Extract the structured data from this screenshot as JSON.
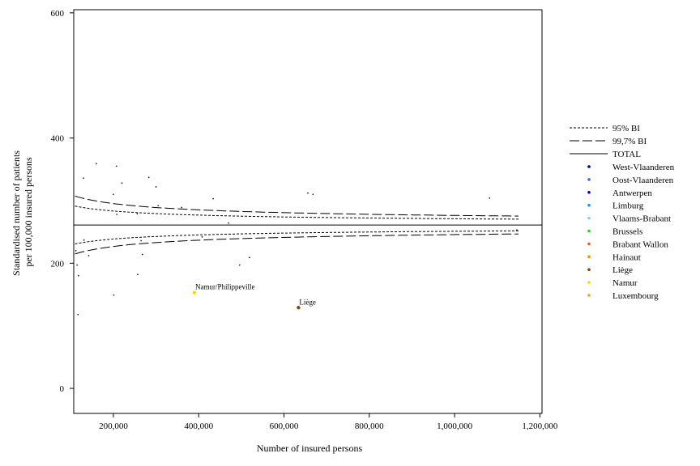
{
  "chart_data": {
    "type": "scatter",
    "subtype": "funnel-plot",
    "title": "",
    "xlabel": "Number of insured persons",
    "ylabel_lines": [
      "Standardised number of patients",
      "per 100,000 insured persons"
    ],
    "xlim": [
      107000,
      1205000
    ],
    "ylim": [
      -40,
      605
    ],
    "x_ticks": [
      200000,
      400000,
      600000,
      800000,
      1000000,
      1200000
    ],
    "x_tick_labels": [
      "200,000",
      "400,000",
      "600,000",
      "800,000",
      "1,000,000",
      "1,200,000"
    ],
    "y_ticks": [
      0,
      200,
      400,
      600
    ],
    "y_tick_labels": [
      "0",
      "200",
      "400",
      "600"
    ],
    "grid": false,
    "legend_position": "right",
    "total_line": {
      "name": "TOTAL",
      "y": 261
    },
    "limits": {
      "x_range": [
        110000,
        1150000
      ],
      "bands": [
        {
          "name": "95% BI",
          "style": "short-dash",
          "z": 1.96
        },
        {
          "name": "99,7% BI",
          "style": "long-dash",
          "z": 3
        }
      ]
    },
    "provinces": [
      {
        "name": "West-Vlaanderen",
        "color": "#00008b"
      },
      {
        "name": "Oost-Vlaanderen",
        "color": "#4169e1"
      },
      {
        "name": "Antwerpen",
        "color": "#0000cd"
      },
      {
        "name": "Limburg",
        "color": "#1e90ff"
      },
      {
        "name": "Vlaams-Brabant",
        "color": "#87cefa"
      },
      {
        "name": "Brussels",
        "color": "#32cd32"
      },
      {
        "name": "Brabant Wallon",
        "color": "#d2691e"
      },
      {
        "name": "Hainaut",
        "color": "#ff8c00"
      },
      {
        "name": "Liège",
        "color": "#8b4513"
      },
      {
        "name": "Namur",
        "color": "#ffd700"
      },
      {
        "name": "Luxembourg",
        "color": "#f4a020"
      }
    ],
    "points": [
      {
        "x": 112000,
        "y": 220
      },
      {
        "x": 115000,
        "y": 197
      },
      {
        "x": 117000,
        "y": 118
      },
      {
        "x": 118000,
        "y": 180
      },
      {
        "x": 130000,
        "y": 336
      },
      {
        "x": 131000,
        "y": 237
      },
      {
        "x": 142000,
        "y": 212
      },
      {
        "x": 160000,
        "y": 359
      },
      {
        "x": 200000,
        "y": 310
      },
      {
        "x": 201000,
        "y": 149
      },
      {
        "x": 207000,
        "y": 355
      },
      {
        "x": 208000,
        "y": 278
      },
      {
        "x": 220000,
        "y": 328
      },
      {
        "x": 256000,
        "y": 279
      },
      {
        "x": 257000,
        "y": 182
      },
      {
        "x": 265000,
        "y": 236
      },
      {
        "x": 268000,
        "y": 214
      },
      {
        "x": 283000,
        "y": 337
      },
      {
        "x": 300000,
        "y": 322
      },
      {
        "x": 305000,
        "y": 292
      },
      {
        "x": 360000,
        "y": 289
      },
      {
        "x": 390000,
        "y": 153,
        "province": "Namur",
        "color": "#ffd700",
        "label": "Namur/Philippeville"
      },
      {
        "x": 408000,
        "y": 242
      },
      {
        "x": 434000,
        "y": 303
      },
      {
        "x": 470000,
        "y": 264
      },
      {
        "x": 496000,
        "y": 197
      },
      {
        "x": 519000,
        "y": 209
      },
      {
        "x": 634000,
        "y": 129,
        "province": "Liège",
        "color": "#8b4513",
        "label": "Liège"
      },
      {
        "x": 656000,
        "y": 312
      },
      {
        "x": 668000,
        "y": 310
      },
      {
        "x": 1082000,
        "y": 304
      },
      {
        "x": 1146000,
        "y": 253
      }
    ]
  }
}
